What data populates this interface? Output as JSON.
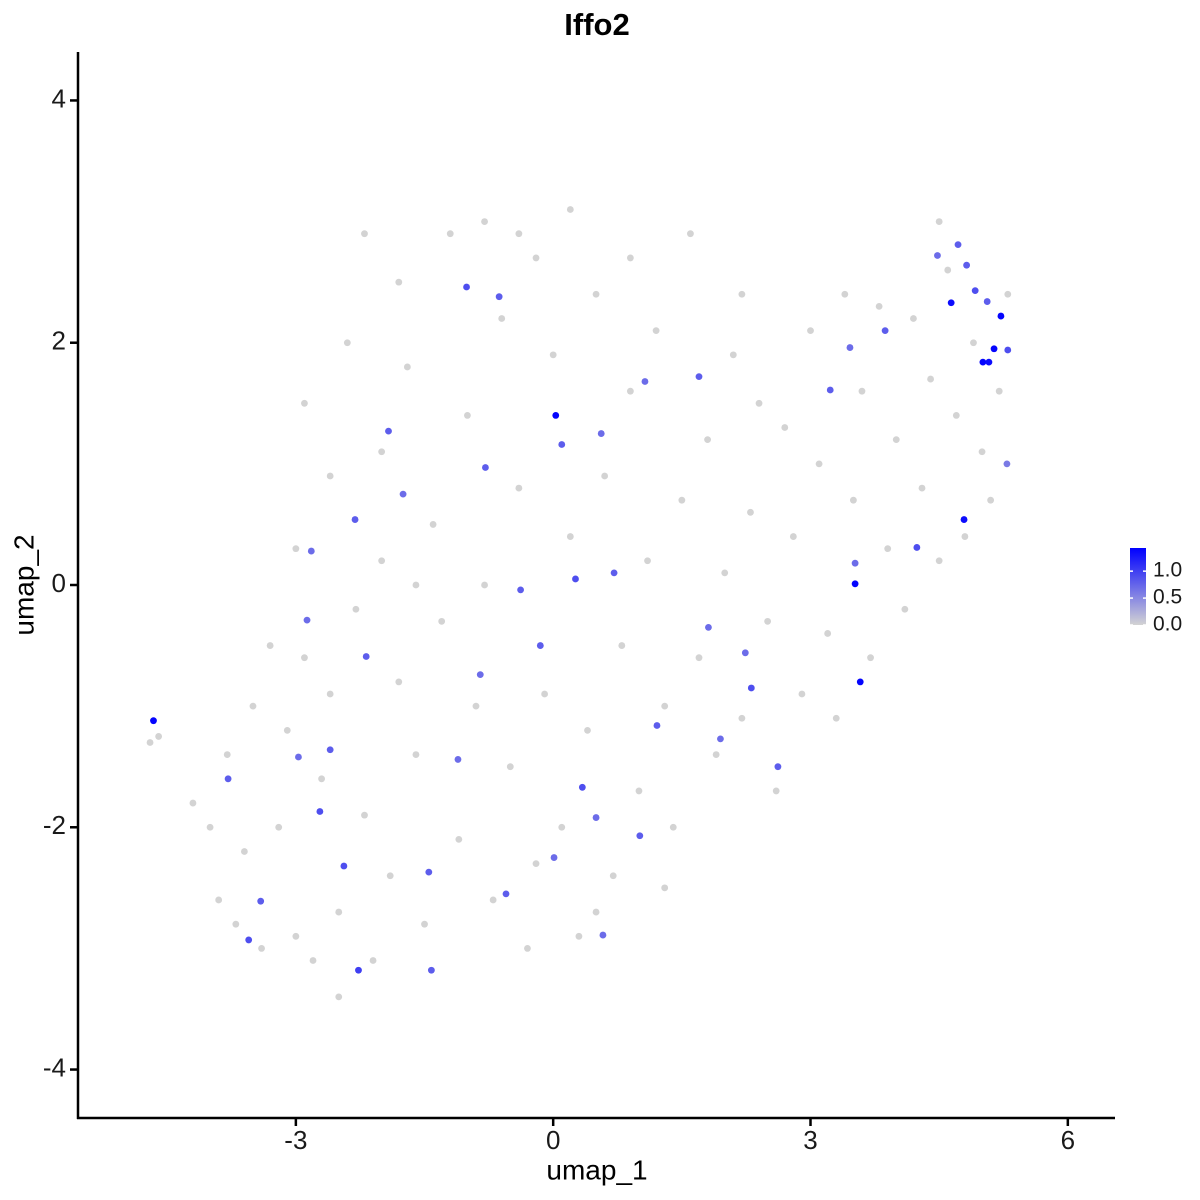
{
  "chart_data": {
    "type": "scatter",
    "title": "Iffo2",
    "x_label": "umap_1",
    "y_label": "umap_2",
    "xlim": [
      -5.54,
      6.55
    ],
    "ylim": [
      -4.4,
      4.4
    ],
    "xticks": [
      -3,
      0,
      3,
      6
    ],
    "yticks": [
      -4,
      -2,
      0,
      2,
      4
    ],
    "grid": false,
    "colors": [
      "#d3d3d3",
      "#0000ff"
    ],
    "clim": [
      0,
      1.43
    ],
    "cticks": [
      {
        "value": 0,
        "label": "0.0"
      },
      {
        "value": 0.5,
        "label": "0.5"
      },
      {
        "value": 1,
        "label": "1.0"
      }
    ],
    "legend": "right",
    "x": [
      -4.7,
      -4.6,
      -4.2,
      -4.0,
      -3.9,
      -3.8,
      -3.6,
      -3.5,
      -3.4,
      -3.3,
      -3.2,
      -3.1,
      -3.0,
      -3.0,
      -2.9,
      -2.9,
      -2.8,
      -2.7,
      -2.6,
      -2.5,
      -2.5,
      -2.4,
      -2.3,
      -2.2,
      -2.2,
      -2.1,
      -2.0,
      -2.0,
      -1.9,
      -1.8,
      -1.8,
      -1.7,
      -1.6,
      -1.5,
      -1.4,
      -1.3,
      -1.2,
      -1.1,
      -1.0,
      -0.9,
      -0.8,
      -0.8,
      -0.7,
      -0.6,
      -0.5,
      -0.4,
      -0.3,
      -0.2,
      -0.1,
      0.0,
      0.1,
      0.2,
      0.2,
      0.3,
      0.4,
      0.5,
      0.6,
      0.7,
      0.8,
      0.9,
      1.0,
      1.1,
      1.2,
      1.3,
      1.4,
      1.5,
      1.6,
      1.7,
      1.8,
      1.9,
      2.0,
      2.1,
      2.2,
      2.3,
      2.4,
      2.5,
      2.6,
      2.7,
      2.8,
      2.9,
      3.0,
      3.1,
      3.2,
      3.3,
      3.4,
      3.5,
      3.6,
      3.7,
      3.8,
      3.9,
      4.0,
      4.1,
      4.2,
      4.3,
      4.4,
      4.5,
      4.5,
      4.6,
      4.7,
      4.8,
      4.9,
      5.0,
      5.1,
      5.2,
      5.3,
      0.5,
      -0.2,
      1.3,
      -1.6,
      -2.6,
      -3.7,
      0.9,
      -0.4,
      2.2,
      -2.82,
      -1.92,
      -1.01,
      -0.63,
      -2.97,
      -2.44,
      -3.41,
      -2.27,
      -1.42,
      -1.11,
      -0.15,
      0.26,
      0.71,
      1.81,
      2.31,
      2.24,
      2.62,
      4.24,
      3.52,
      3.23,
      3.46,
      3.87,
      5.29,
      5.3,
      4.72,
      4.48,
      4.82,
      4.92,
      5.06,
      1.7,
      1.07,
      0.56,
      0.1,
      -0.79,
      -1.75,
      -2.31,
      -2.87,
      -2.18,
      -2.72,
      -3.79,
      -3.55,
      -1.45,
      0.01,
      0.34,
      -0.55,
      0.58,
      1.21,
      1.95,
      1.01,
      0.5,
      -0.38,
      -0.85,
      -2.6,
      -4.66,
      0.03,
      3.52,
      3.58,
      4.79,
      4.64,
      5.22,
      5.14,
      5.01,
      5.08
    ],
    "y": [
      -1.3,
      -1.25,
      -1.8,
      -2.0,
      -2.6,
      -1.4,
      -2.2,
      -1.0,
      -3.0,
      -0.5,
      -2.0,
      -1.2,
      -2.9,
      0.3,
      1.5,
      -0.6,
      -3.1,
      -1.6,
      0.9,
      -2.7,
      -3.4,
      2.0,
      -0.2,
      -1.9,
      2.9,
      -3.1,
      1.1,
      0.2,
      -2.4,
      -0.8,
      2.5,
      1.8,
      -1.4,
      -2.8,
      0.5,
      -0.3,
      2.9,
      -2.1,
      1.4,
      -1.0,
      3.0,
      0.0,
      -2.6,
      2.2,
      -1.5,
      0.8,
      -3.0,
      2.7,
      -0.9,
      1.9,
      -2.0,
      3.1,
      0.4,
      -2.9,
      -1.2,
      2.4,
      0.9,
      -2.4,
      -0.5,
      1.6,
      -1.7,
      0.2,
      2.1,
      -1.0,
      -2.0,
      0.7,
      2.9,
      -0.6,
      1.2,
      -1.4,
      0.1,
      1.9,
      -1.1,
      0.6,
      1.5,
      -0.3,
      -1.7,
      1.3,
      0.4,
      -0.9,
      2.1,
      1.0,
      -0.4,
      -1.1,
      2.4,
      0.7,
      1.6,
      -0.6,
      2.3,
      0.3,
      1.2,
      -0.2,
      2.2,
      0.8,
      1.7,
      3.0,
      0.2,
      2.6,
      1.4,
      0.4,
      2.0,
      1.1,
      0.7,
      1.6,
      2.4,
      -2.7,
      -2.3,
      -2.5,
      0.0,
      -0.9,
      -2.8,
      2.7,
      2.9,
      2.4,
      0.28,
      1.27,
      2.46,
      2.38,
      -1.42,
      -2.32,
      -2.61,
      -3.18,
      -3.18,
      -1.44,
      -0.5,
      0.05,
      0.1,
      -0.35,
      -0.85,
      -0.56,
      -1.5,
      0.31,
      0.18,
      1.61,
      1.96,
      2.1,
      1.0,
      1.94,
      2.81,
      2.72,
      2.64,
      2.43,
      2.34,
      1.72,
      1.68,
      1.25,
      1.16,
      0.97,
      0.75,
      0.54,
      -0.29,
      -0.59,
      -1.87,
      -1.6,
      -2.93,
      -2.37,
      -2.25,
      -1.67,
      -2.55,
      -2.89,
      -1.16,
      -1.27,
      -2.07,
      -1.92,
      -0.04,
      -0.74,
      -1.36,
      -1.12,
      1.4,
      0.01,
      -0.8,
      0.54,
      2.33,
      2.22,
      1.95,
      1.84,
      1.84
    ],
    "values": [
      0,
      0,
      0,
      0,
      0,
      0,
      0,
      0,
      0,
      0,
      0,
      0,
      0,
      0,
      0,
      0,
      0,
      0,
      0,
      0,
      0,
      0,
      0,
      0,
      0,
      0,
      0,
      0,
      0,
      0,
      0,
      0,
      0,
      0,
      0,
      0,
      0,
      0,
      0,
      0,
      0,
      0,
      0,
      0,
      0,
      0,
      0,
      0,
      0,
      0,
      0,
      0,
      0,
      0,
      0,
      0,
      0,
      0,
      0,
      0,
      0,
      0,
      0,
      0,
      0,
      0,
      0,
      0,
      0,
      0,
      0,
      0,
      0,
      0,
      0,
      0,
      0,
      0,
      0,
      0,
      0,
      0,
      0,
      0,
      0,
      0,
      0,
      0,
      0,
      0,
      0,
      0,
      0,
      0,
      0,
      0,
      0,
      0,
      0,
      0,
      0,
      0,
      0,
      0,
      0,
      0,
      0,
      0,
      0,
      0,
      0,
      0,
      0,
      0,
      0.7,
      0.8,
      0.9,
      0.8,
      0.7,
      0.9,
      0.8,
      1.0,
      0.8,
      0.7,
      0.8,
      0.9,
      0.8,
      0.7,
      0.9,
      0.7,
      0.8,
      0.9,
      0.7,
      0.8,
      0.7,
      0.8,
      0.6,
      0.9,
      0.8,
      0.7,
      0.8,
      0.9,
      0.8,
      0.8,
      0.7,
      0.7,
      0.8,
      0.8,
      0.7,
      0.8,
      0.7,
      0.8,
      0.9,
      0.8,
      0.9,
      0.8,
      0.7,
      0.9,
      0.8,
      0.7,
      0.8,
      0.7,
      0.8,
      0.7,
      0.8,
      0.7,
      0.8,
      1.4,
      1.4,
      1.4,
      1.4,
      1.35,
      1.35,
      1.4,
      1.4,
      1.4,
      1.35
    ]
  }
}
